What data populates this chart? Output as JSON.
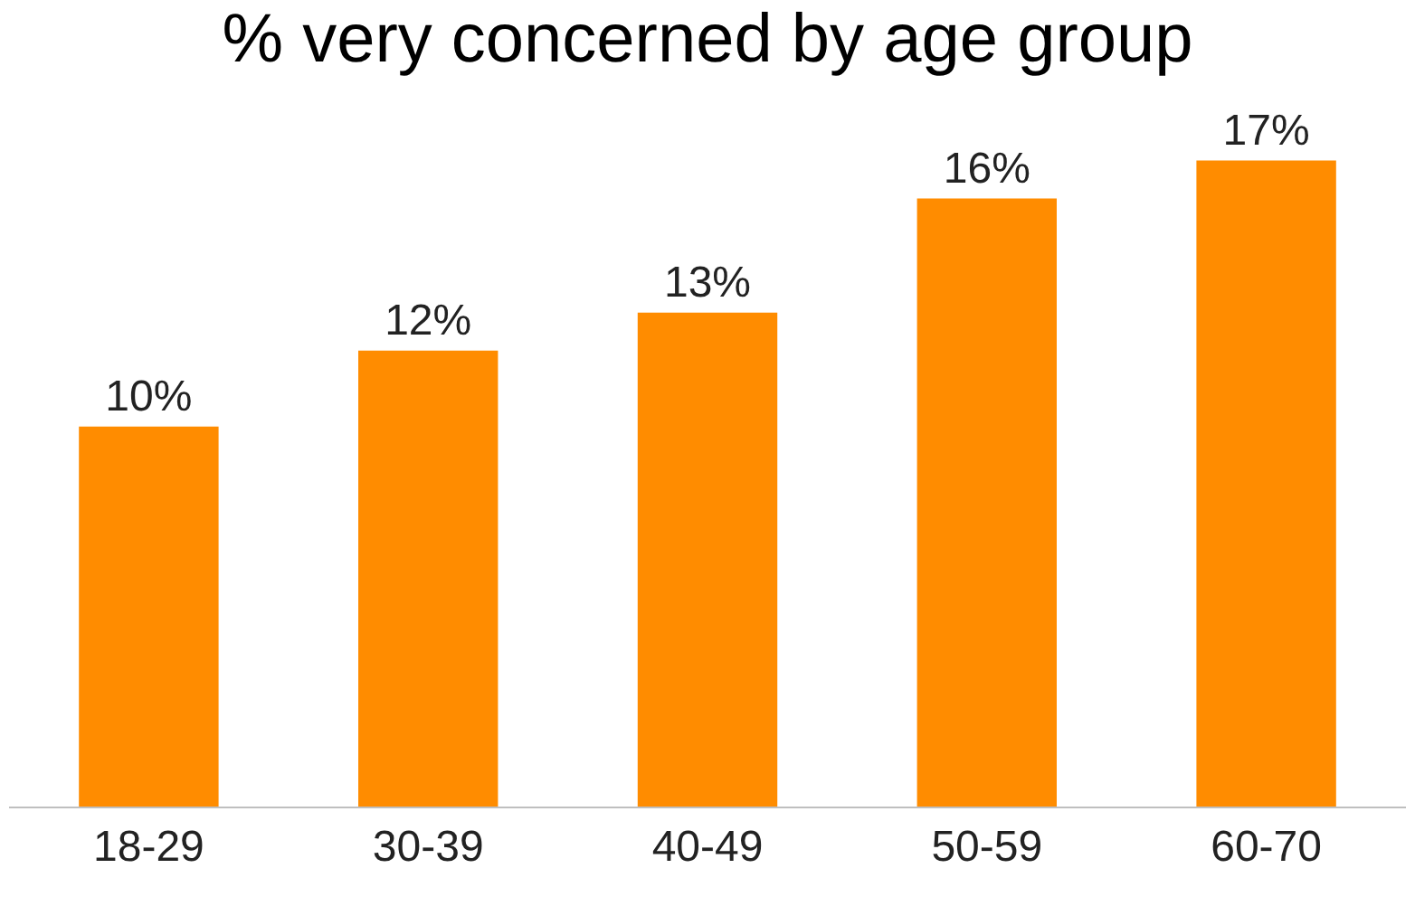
{
  "chart_data": {
    "type": "bar",
    "title": "% very concerned by age group",
    "categories": [
      "18-29",
      "30-39",
      "40-49",
      "50-59",
      "60-70"
    ],
    "values": [
      10,
      12,
      13,
      16,
      17
    ],
    "value_labels": [
      "10%",
      "12%",
      "13%",
      "16%",
      "17%"
    ],
    "color": "#ff8c00"
  }
}
